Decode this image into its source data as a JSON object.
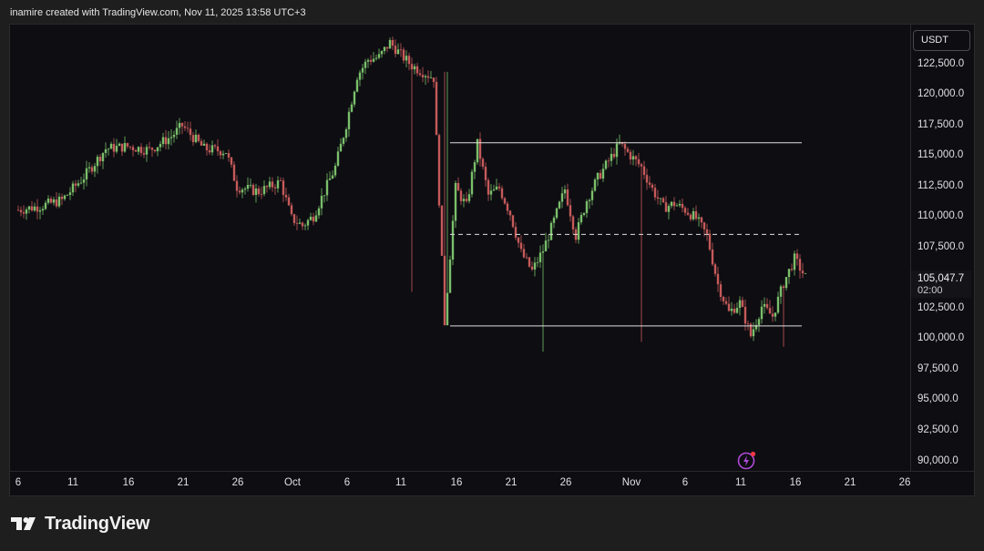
{
  "header": {
    "attribution": "inamire created with TradingView.com, Nov 11, 2025 13:58 UTC+3"
  },
  "brand": {
    "name": "TradingView",
    "logo_icon": "tradingview-logo-icon"
  },
  "price_axis": {
    "currency": "USDT",
    "labels": [
      "122,500.0",
      "120,000.0",
      "117,500.0",
      "115,000.0",
      "112,500.0",
      "110,000.0",
      "107,500.0",
      "105,047.7",
      "102,500.0",
      "100,000.0",
      "97,500.0",
      "95,000.0",
      "92,500.0",
      "90,000.0"
    ]
  },
  "current_price": {
    "value": "105,047.7",
    "countdown": "02:00"
  },
  "time_axis": {
    "labels": [
      "6",
      "11",
      "16",
      "21",
      "26",
      "Oct",
      "6",
      "11",
      "16",
      "21",
      "26",
      "Nov",
      "6",
      "11",
      "16",
      "21",
      "26"
    ]
  },
  "colors": {
    "up": "#26a69a",
    "down": "#ef5350",
    "up_candle": "#7bbf6a",
    "down_candle": "#c65a5a",
    "background": "#0d0d12",
    "lines": "#e0e0e0"
  },
  "icons": {
    "alert": "lightning-alert-icon"
  },
  "chart_data": {
    "type": "candlestick",
    "title": "",
    "xlabel": "",
    "ylabel": "",
    "currency": "USDT",
    "ylim": [
      89000,
      124500
    ],
    "x_range": [
      "2025-09-05",
      "2025-11-26"
    ],
    "grid": false,
    "last_price": 105047.7,
    "close_path": [
      [
        "2025-09-05",
        110500
      ],
      [
        "2025-09-07",
        110800
      ],
      [
        "2025-09-09",
        111300
      ],
      [
        "2025-09-11",
        113200
      ],
      [
        "2025-09-13",
        115500
      ],
      [
        "2025-09-15",
        115700
      ],
      [
        "2025-09-17",
        115400
      ],
      [
        "2025-09-19",
        116500
      ],
      [
        "2025-09-20",
        117400
      ],
      [
        "2025-09-22",
        115500
      ],
      [
        "2025-09-24",
        115300
      ],
      [
        "2025-09-25",
        112400
      ],
      [
        "2025-09-27",
        112000
      ],
      [
        "2025-09-29",
        112800
      ],
      [
        "2025-09-30",
        109800
      ],
      [
        "2025-10-01",
        109200
      ],
      [
        "2025-10-02",
        110000
      ],
      [
        "2025-10-04",
        114000
      ],
      [
        "2025-10-05",
        117500
      ],
      [
        "2025-10-06",
        121500
      ],
      [
        "2025-10-07",
        122800
      ],
      [
        "2025-10-08",
        123000
      ],
      [
        "2025-10-09",
        124200
      ],
      [
        "2025-10-10",
        123200
      ],
      [
        "2025-10-11",
        122300
      ],
      [
        "2025-10-12",
        121800
      ],
      [
        "2025-10-13",
        121300
      ],
      [
        "2025-10-14",
        101300
      ],
      [
        "2025-10-15",
        112300
      ],
      [
        "2025-10-16",
        110800
      ],
      [
        "2025-10-17",
        115900
      ],
      [
        "2025-10-18",
        111700
      ],
      [
        "2025-10-19",
        112300
      ],
      [
        "2025-10-20",
        110200
      ],
      [
        "2025-10-21",
        107000
      ],
      [
        "2025-10-22",
        105500
      ],
      [
        "2025-10-23",
        107200
      ],
      [
        "2025-10-24",
        109600
      ],
      [
        "2025-10-25",
        112200
      ],
      [
        "2025-10-26",
        108400
      ],
      [
        "2025-10-27",
        111300
      ],
      [
        "2025-10-28",
        113100
      ],
      [
        "2025-10-30",
        115900
      ],
      [
        "2025-11-01",
        114000
      ],
      [
        "2025-11-02",
        112200
      ],
      [
        "2025-11-03",
        110700
      ],
      [
        "2025-11-04",
        111000
      ],
      [
        "2025-11-05",
        110500
      ],
      [
        "2025-11-06",
        109800
      ],
      [
        "2025-11-07",
        108400
      ],
      [
        "2025-11-08",
        104400
      ],
      [
        "2025-11-09",
        102100
      ],
      [
        "2025-11-10",
        102900
      ],
      [
        "2025-11-11",
        100200
      ],
      [
        "2025-11-12",
        102600
      ],
      [
        "2025-11-13",
        101800
      ],
      [
        "2025-11-14",
        104500
      ],
      [
        "2025-11-15",
        106500
      ],
      [
        "2025-11-16",
        105000
      ]
    ],
    "lows": [
      [
        "2025-10-11",
        103800
      ],
      [
        "2025-10-23",
        98900
      ],
      [
        "2025-11-01",
        99700
      ],
      [
        "2025-11-14",
        99300
      ]
    ],
    "annotations": [
      {
        "type": "horizontal_segment",
        "style": "solid",
        "value": 116000,
        "from": "2025-10-14",
        "to": "2025-11-26"
      },
      {
        "type": "horizontal_segment",
        "style": "dashed",
        "value": 108500,
        "from": "2025-10-14",
        "to": "2025-11-26"
      },
      {
        "type": "horizontal_segment",
        "style": "solid",
        "value": 101000,
        "from": "2025-10-14",
        "to": "2025-11-26"
      }
    ]
  }
}
